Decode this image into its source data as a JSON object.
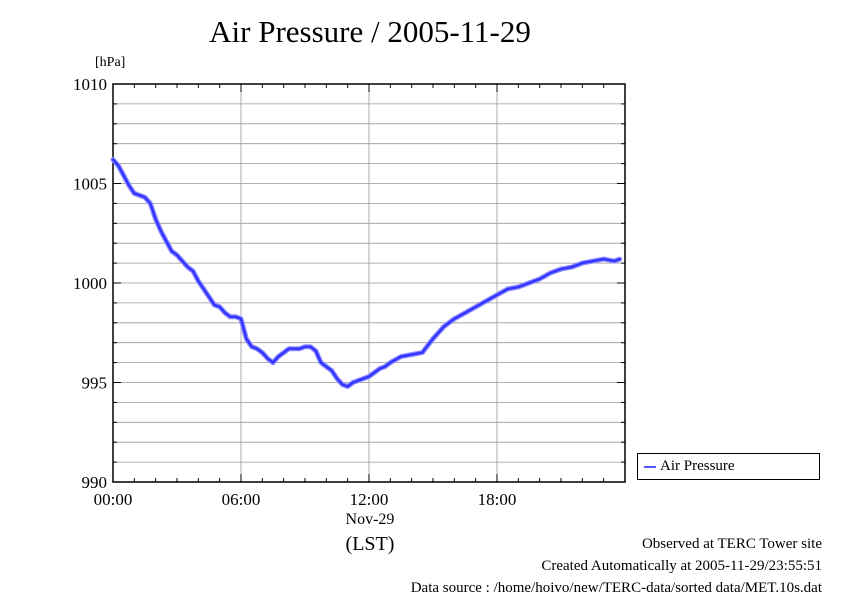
{
  "chart_data": {
    "type": "line",
    "title": "Air Pressure / 2005-11-29",
    "unit_label": "[hPa]",
    "ylim": [
      990,
      1010
    ],
    "y_ticks": [
      "990",
      "995",
      "1000",
      "1005",
      "1010"
    ],
    "xlim_hours": [
      0,
      24
    ],
    "x_ticks": [
      "00:00",
      "06:00",
      "12:00",
      "18:00"
    ],
    "x_date_label": "Nov-29",
    "x_timezone_label": "(LST)",
    "grid": true,
    "legend": "bottom-right",
    "series": [
      {
        "name": "Air Pressure",
        "color": "#3333ff",
        "x": [
          0.0,
          0.25,
          0.5,
          0.75,
          1.0,
          1.25,
          1.5,
          1.75,
          2.0,
          2.25,
          2.5,
          2.75,
          3.0,
          3.25,
          3.5,
          3.75,
          4.0,
          4.25,
          4.5,
          4.75,
          5.0,
          5.25,
          5.5,
          5.75,
          6.0,
          6.25,
          6.5,
          6.75,
          7.0,
          7.25,
          7.5,
          7.75,
          8.0,
          8.25,
          8.5,
          8.75,
          9.0,
          9.25,
          9.5,
          9.75,
          10.0,
          10.25,
          10.5,
          10.75,
          11.0,
          11.25,
          11.5,
          11.75,
          12.0,
          12.25,
          12.5,
          12.75,
          13.0,
          13.5,
          14.0,
          14.5,
          15.0,
          15.5,
          16.0,
          16.5,
          17.0,
          17.5,
          18.0,
          18.5,
          19.0,
          19.5,
          20.0,
          20.5,
          21.0,
          21.5,
          22.0,
          22.5,
          23.0,
          23.5,
          23.75
        ],
        "y": [
          1006.2,
          1005.9,
          1005.4,
          1004.9,
          1004.5,
          1004.4,
          1004.3,
          1004.0,
          1003.2,
          1002.6,
          1002.1,
          1001.6,
          1001.4,
          1001.1,
          1000.8,
          1000.6,
          1000.1,
          999.7,
          999.3,
          998.9,
          998.8,
          998.5,
          998.3,
          998.3,
          998.2,
          997.2,
          996.8,
          996.7,
          996.5,
          996.2,
          996.0,
          996.3,
          996.5,
          996.7,
          996.7,
          996.7,
          996.8,
          996.8,
          996.6,
          996.0,
          995.8,
          995.6,
          995.2,
          994.9,
          994.8,
          995.0,
          995.1,
          995.2,
          995.3,
          995.5,
          995.7,
          995.8,
          996.0,
          996.3,
          996.4,
          996.5,
          997.2,
          997.8,
          998.2,
          998.5,
          998.8,
          999.1,
          999.4,
          999.7,
          999.8,
          1000.0,
          1000.2,
          1000.5,
          1000.7,
          1000.8,
          1001.0,
          1001.1,
          1001.2,
          1001.1,
          1001.2
        ]
      }
    ]
  },
  "footer": {
    "line1": "Observed at TERC Tower site",
    "line2": "Created Automatically at 2005-11-29/23:55:51",
    "line3": "Data source : /home/hoivo/new/TERC-data/sorted  data/MET.10s.dat"
  }
}
